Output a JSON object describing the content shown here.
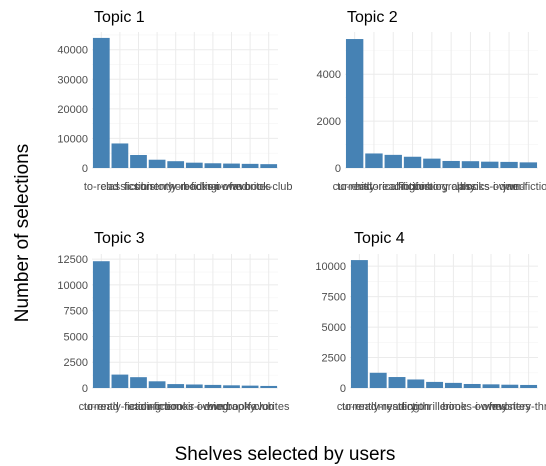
{
  "xlabel": "Shelves selected by users",
  "ylabel": "Number of selections",
  "chart_data": [
    {
      "type": "bar",
      "title": "Topic 1",
      "categories": [
        "to-read",
        "classics",
        "fiction",
        "history",
        "currently-reading",
        "non-fiction",
        "books-i-own",
        "owned",
        "favorites",
        "book-club"
      ],
      "values": [
        44000,
        8300,
        4400,
        2800,
        2300,
        1800,
        1600,
        1500,
        1400,
        1300
      ],
      "ylim": [
        0,
        46000
      ],
      "yticks": [
        0,
        10000,
        20000,
        30000,
        40000
      ],
      "ytick_labels": [
        "0",
        "10000",
        "20000",
        "30000",
        "40000"
      ]
    },
    {
      "type": "bar",
      "title": "Topic 2",
      "categories": [
        "to-read",
        "currently-reading",
        "historical-fiction",
        "fiction",
        "history",
        "biography",
        "classics",
        "books-i-own",
        "owned",
        "jam-fiction"
      ],
      "values": [
        5500,
        620,
        560,
        480,
        400,
        300,
        290,
        270,
        260,
        240
      ],
      "ylim": [
        0,
        5800
      ],
      "yticks": [
        0,
        2000,
        4000
      ],
      "ytick_labels": [
        "0",
        "2000",
        "4000"
      ]
    },
    {
      "type": "bar",
      "title": "Topic 3",
      "categories": [
        "to-read",
        "currently-reading",
        "fiction",
        "non-fiction",
        "memoir",
        "books-i-own",
        "owned",
        "biography",
        "book-club",
        "favorites"
      ],
      "values": [
        12300,
        1300,
        1050,
        650,
        380,
        340,
        300,
        260,
        230,
        200
      ],
      "ylim": [
        0,
        13000
      ],
      "yticks": [
        0,
        2500,
        5000,
        7500,
        10000,
        12500
      ],
      "ytick_labels": [
        "0",
        "2500",
        "5000",
        "7500",
        "10000",
        "12500"
      ]
    },
    {
      "type": "bar",
      "title": "Topic 4",
      "categories": [
        "to-read",
        "currently-reading",
        "mystery",
        "fiction",
        "thriller",
        "crime",
        "books-i-own",
        "owned",
        "favorites",
        "mystery-thriller"
      ],
      "values": [
        10500,
        1250,
        900,
        700,
        500,
        420,
        330,
        300,
        270,
        250
      ],
      "ylim": [
        0,
        11000
      ],
      "yticks": [
        0,
        2500,
        5000,
        7500,
        10000
      ],
      "ytick_labels": [
        "0",
        "2500",
        "5000",
        "7500",
        "10000"
      ]
    }
  ]
}
